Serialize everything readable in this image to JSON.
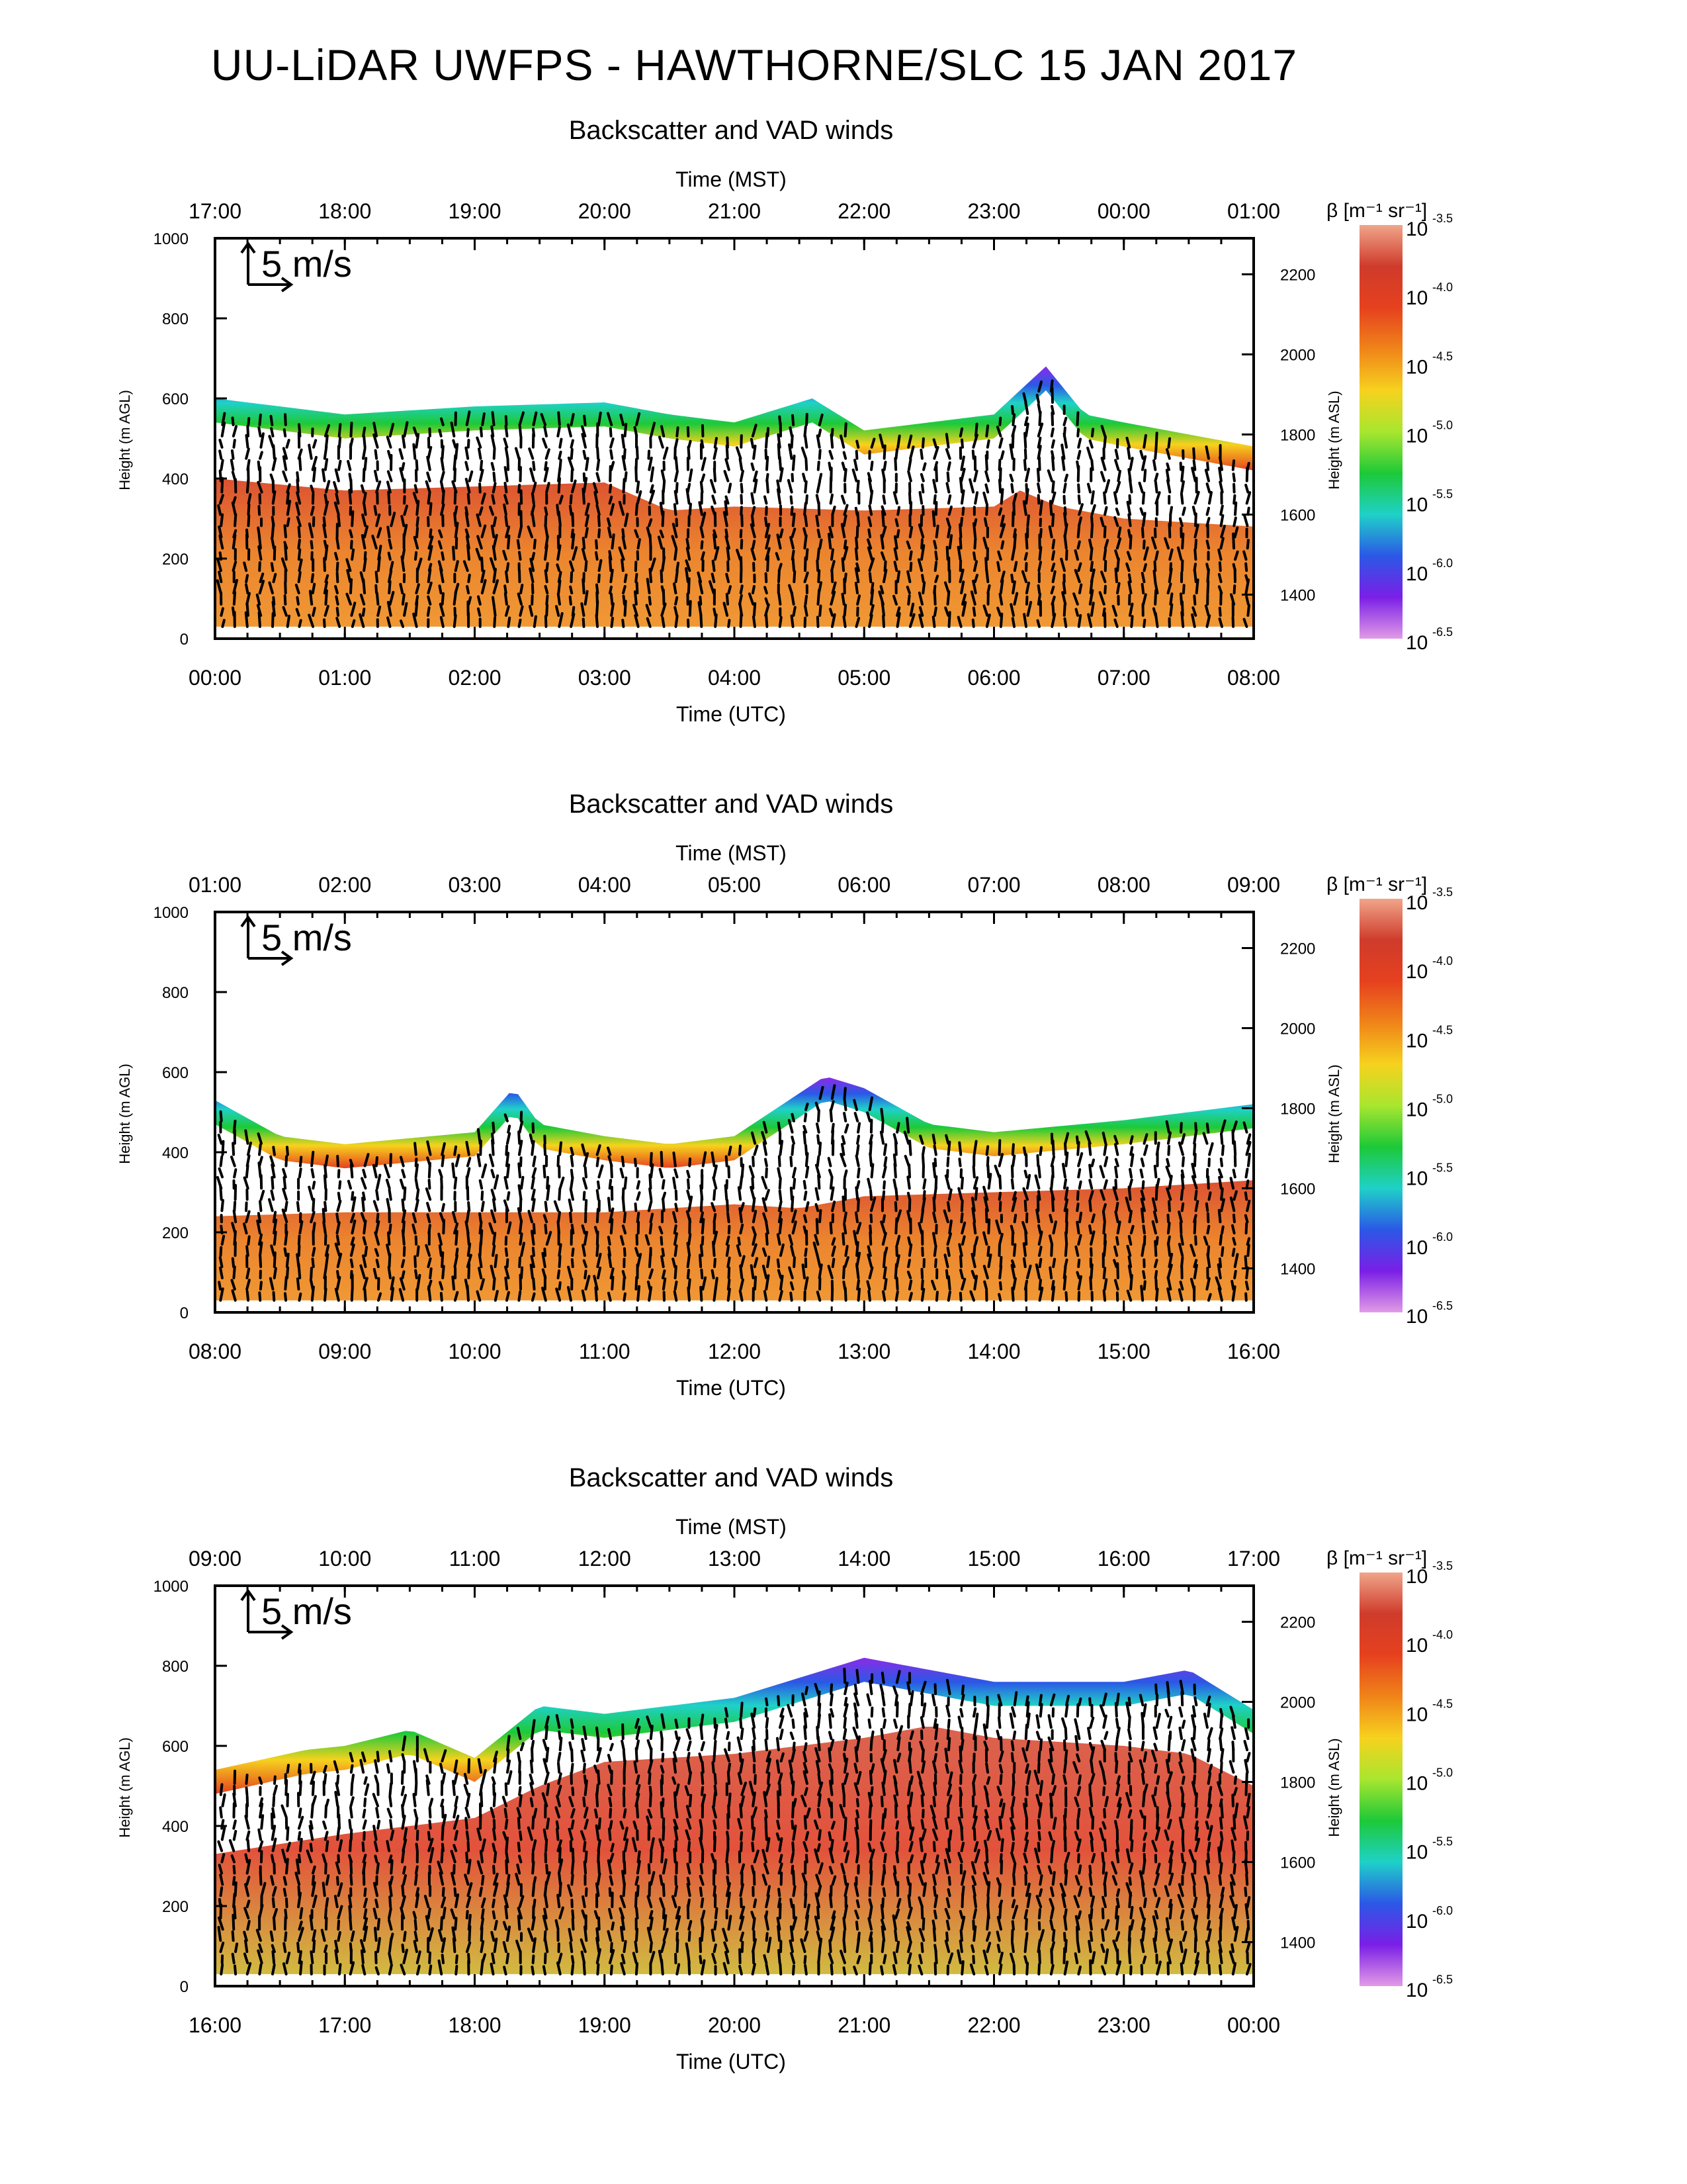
{
  "page": {
    "title": "UU-LiDAR UWFPS - HAWTHORNE/SLC 15 JAN 2017"
  },
  "chart_data": [
    {
      "type": "heatmap",
      "title": "Backscatter and VAD winds",
      "xlabel_bottom": "Time (UTC)",
      "xlabel_top": "Time (MST)",
      "ylabel_left": "Height (m AGL)",
      "ylabel_right": "Height (m ASL)",
      "x_ticks_bottom": [
        "00:00",
        "01:00",
        "02:00",
        "03:00",
        "04:00",
        "05:00",
        "06:00",
        "07:00",
        "08:00"
      ],
      "x_ticks_top": [
        "17:00",
        "18:00",
        "19:00",
        "20:00",
        "21:00",
        "22:00",
        "23:00",
        "00:00",
        "01:00"
      ],
      "xlim_hours_utc": [
        0,
        8
      ],
      "ylim": [
        0,
        1000
      ],
      "y_ticks_left": [
        "0",
        "200",
        "400",
        "600",
        "800",
        "1000"
      ],
      "y_ticks_right": [
        "1400",
        "1600",
        "1800",
        "2000",
        "2200"
      ],
      "scale_arrow_label": "5 m/s",
      "mixed_layer_top_m": [
        [
          0,
          400
        ],
        [
          1,
          370
        ],
        [
          2,
          380
        ],
        [
          3,
          390
        ],
        [
          3.5,
          320
        ],
        [
          4,
          330
        ],
        [
          5,
          320
        ],
        [
          6,
          330
        ],
        [
          6.2,
          370
        ],
        [
          6.5,
          330
        ],
        [
          7,
          300
        ],
        [
          8,
          280
        ]
      ],
      "aerosol_top_m": [
        [
          0,
          600
        ],
        [
          0.5,
          580
        ],
        [
          1,
          560
        ],
        [
          2,
          580
        ],
        [
          3,
          590
        ],
        [
          3.5,
          560
        ],
        [
          4,
          540
        ],
        [
          4.6,
          600
        ],
        [
          5,
          520
        ],
        [
          6,
          560
        ],
        [
          6.4,
          680
        ],
        [
          6.7,
          560
        ],
        [
          7,
          540
        ],
        [
          8,
          480
        ]
      ]
    },
    {
      "type": "heatmap",
      "title": "Backscatter and VAD winds",
      "xlabel_bottom": "Time (UTC)",
      "xlabel_top": "Time (MST)",
      "ylabel_left": "Height (m AGL)",
      "ylabel_right": "Height (m ASL)",
      "x_ticks_bottom": [
        "08:00",
        "09:00",
        "10:00",
        "11:00",
        "12:00",
        "13:00",
        "14:00",
        "15:00",
        "16:00"
      ],
      "x_ticks_top": [
        "01:00",
        "02:00",
        "03:00",
        "04:00",
        "05:00",
        "06:00",
        "07:00",
        "08:00",
        "09:00"
      ],
      "xlim_hours_utc": [
        8,
        16
      ],
      "ylim": [
        0,
        1000
      ],
      "y_ticks_left": [
        "0",
        "200",
        "400",
        "600",
        "800",
        "1000"
      ],
      "y_ticks_right": [
        "1400",
        "1600",
        "1800",
        "2000",
        "2200"
      ],
      "scale_arrow_label": "5 m/s",
      "mixed_layer_top_m": [
        [
          8,
          240
        ],
        [
          9,
          250
        ],
        [
          10,
          250
        ],
        [
          11,
          250
        ],
        [
          12,
          270
        ],
        [
          12.5,
          260
        ],
        [
          13,
          290
        ],
        [
          14,
          300
        ],
        [
          15,
          310
        ],
        [
          16,
          330
        ]
      ],
      "aerosol_top_m": [
        [
          8,
          530
        ],
        [
          8.5,
          440
        ],
        [
          9,
          420
        ],
        [
          10,
          450
        ],
        [
          10.3,
          560
        ],
        [
          10.5,
          470
        ],
        [
          11,
          440
        ],
        [
          11.5,
          420
        ],
        [
          12,
          440
        ],
        [
          12.7,
          590
        ],
        [
          13,
          560
        ],
        [
          13.5,
          470
        ],
        [
          14,
          450
        ],
        [
          15,
          480
        ],
        [
          16,
          520
        ]
      ]
    },
    {
      "type": "heatmap",
      "title": "Backscatter and VAD winds",
      "xlabel_bottom": "Time (UTC)",
      "xlabel_top": "Time (MST)",
      "ylabel_left": "Height (m AGL)",
      "ylabel_right": "Height (m ASL)",
      "x_ticks_bottom": [
        "16:00",
        "17:00",
        "18:00",
        "19:00",
        "20:00",
        "21:00",
        "22:00",
        "23:00",
        "00:00"
      ],
      "x_ticks_top": [
        "09:00",
        "10:00",
        "11:00",
        "12:00",
        "13:00",
        "14:00",
        "15:00",
        "16:00",
        "17:00"
      ],
      "xlim_hours_utc": [
        16,
        24
      ],
      "ylim": [
        0,
        1000
      ],
      "y_ticks_left": [
        "0",
        "200",
        "400",
        "600",
        "800",
        "1000"
      ],
      "y_ticks_right": [
        "1400",
        "1600",
        "1800",
        "2000",
        "2200"
      ],
      "scale_arrow_label": "5 m/s",
      "mixed_layer_top_m": [
        [
          16,
          330
        ],
        [
          17,
          380
        ],
        [
          18,
          420
        ],
        [
          18.5,
          500
        ],
        [
          19,
          560
        ],
        [
          20,
          580
        ],
        [
          21,
          620
        ],
        [
          21.5,
          650
        ],
        [
          22,
          620
        ],
        [
          23,
          600
        ],
        [
          23.5,
          580
        ],
        [
          24,
          500
        ]
      ],
      "aerosol_top_m": [
        [
          16,
          540
        ],
        [
          16.7,
          590
        ],
        [
          17,
          600
        ],
        [
          17.5,
          640
        ],
        [
          18,
          570
        ],
        [
          18.5,
          700
        ],
        [
          19,
          680
        ],
        [
          20,
          720
        ],
        [
          20.7,
          790
        ],
        [
          21,
          820
        ],
        [
          22,
          760
        ],
        [
          23,
          760
        ],
        [
          23.5,
          790
        ],
        [
          24,
          690
        ]
      ]
    }
  ],
  "colorbar": {
    "label": "β [m⁻¹ sr⁻¹]",
    "ticks": [
      {
        "base": "10",
        "exp": "-3.5"
      },
      {
        "base": "10",
        "exp": "-4.0"
      },
      {
        "base": "10",
        "exp": "-4.5"
      },
      {
        "base": "10",
        "exp": "-5.0"
      },
      {
        "base": "10",
        "exp": "-5.5"
      },
      {
        "base": "10",
        "exp": "-6.0"
      },
      {
        "base": "10",
        "exp": "-6.5"
      }
    ],
    "colors": [
      "#f0a58a",
      "#cf3b2b",
      "#e6411f",
      "#f08419",
      "#f6d21e",
      "#a9e62f",
      "#1dc938",
      "#1fd1c8",
      "#2b58e6",
      "#7a1fe6",
      "#e29be6"
    ]
  }
}
